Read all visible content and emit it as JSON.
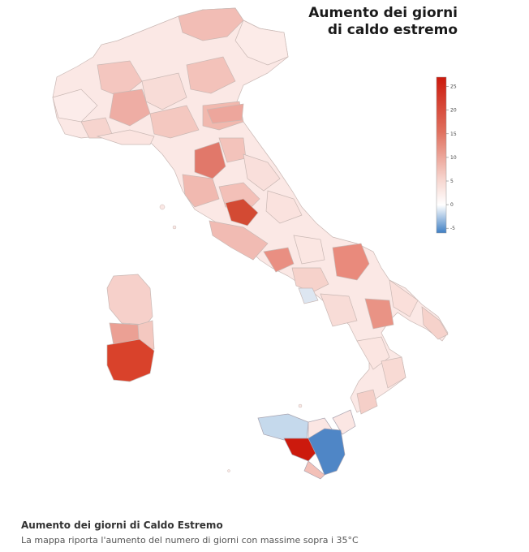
{
  "title_line1": "Aumento dei giorni",
  "title_line2": "di caldo estremo",
  "legend": {
    "ticks": [
      "25",
      "20",
      "15",
      "10",
      "5",
      "0",
      "-5"
    ],
    "min": -6,
    "max": 27,
    "color_negative": "#3f7fc4",
    "color_zero": "#ffffff",
    "color_positive": "#d7200f"
  },
  "caption": {
    "title": "Aumento dei giorni di Caldo Estremo",
    "text": "La mappa riporta l'aumento del numero di giorni con massime sopra i 35°C"
  },
  "regions_colors": {
    "very_light": "#fbe6e3",
    "light": "#f6d0ca",
    "medium": "#ecaaa0",
    "strong": "#e07a6b",
    "very_strong": "#d9422b",
    "max": "#cc1a0d",
    "light_blue": "#c5d9ec",
    "blue": "#4f86c6"
  }
}
